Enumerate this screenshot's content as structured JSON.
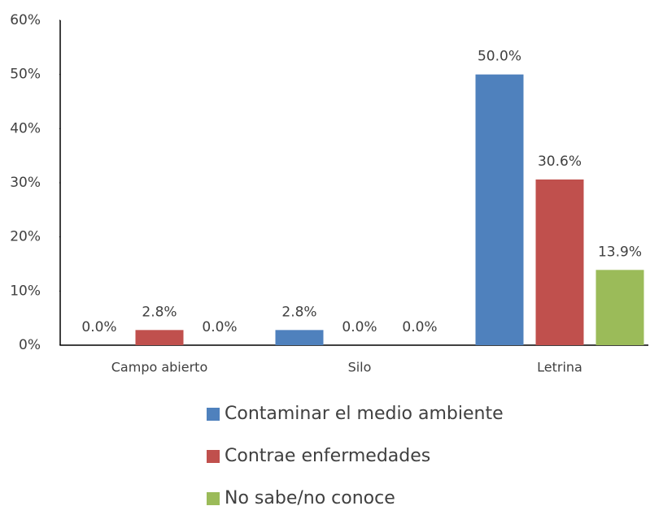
{
  "chart_data": {
    "type": "bar",
    "categories": [
      "Campo abierto",
      "Silo",
      "Letrina"
    ],
    "series": [
      {
        "name": "Contaminar el medio ambiente",
        "color": "#4f81bd",
        "values": [
          0,
          2.8,
          50.0
        ],
        "value_labels": [
          "0.0%",
          "2.8%",
          "50.0%"
        ]
      },
      {
        "name": "Contrae enfermedades",
        "color": "#c0504d",
        "values": [
          2.8,
          0,
          30.6
        ],
        "value_labels": [
          "2.8%",
          "0.0%",
          "30.6%"
        ]
      },
      {
        "name": "No sabe/no conoce",
        "color": "#9bbb59",
        "values": [
          0,
          0,
          13.9
        ],
        "value_labels": [
          "0.0%",
          "0.0%",
          "13.9%"
        ]
      }
    ],
    "ylim": [
      0,
      60
    ],
    "yticks": [
      {
        "value": 0,
        "label": "0%"
      },
      {
        "value": 10,
        "label": "10%"
      },
      {
        "value": 20,
        "label": "20%"
      },
      {
        "value": 30,
        "label": "30%"
      },
      {
        "value": 40,
        "label": "40%"
      },
      {
        "value": 50,
        "label": "50%"
      },
      {
        "value": 60,
        "label": "60%"
      }
    ],
    "legend": "bottom"
  }
}
